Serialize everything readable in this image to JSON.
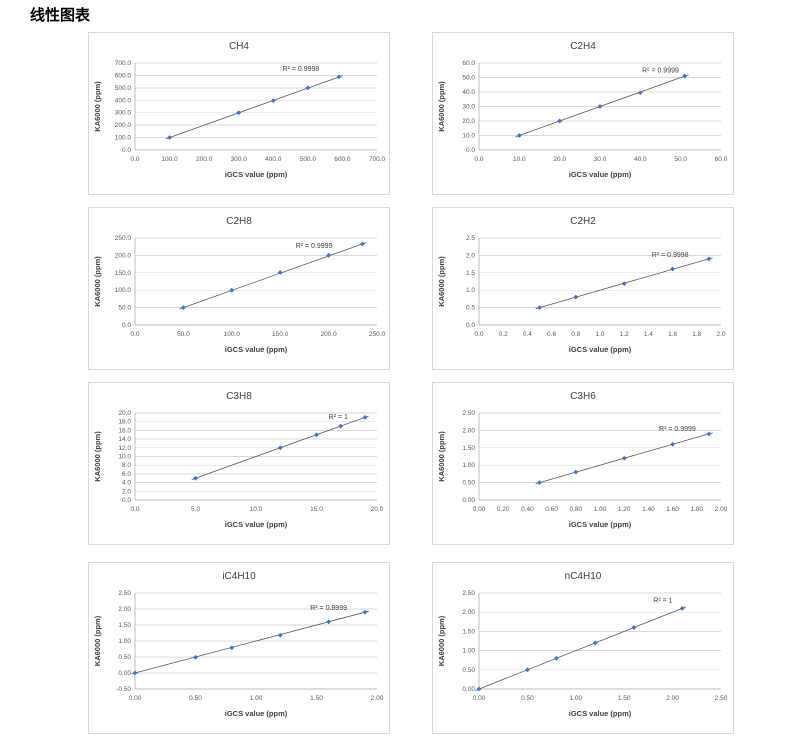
{
  "page": {
    "title": "线性图表"
  },
  "style": {
    "marker_color": "#4472C4",
    "trendline_color": "#595959",
    "grid_color": "#d9d9d9",
    "axis_color": "#bfbfbf",
    "tick_text_color": "#595959",
    "title_text_color": "#404040"
  },
  "chart_data": [
    {
      "type": "scatter",
      "title": "CH4",
      "xlabel": "iGCS value (ppm)",
      "ylabel": "KA6000 (ppm)",
      "xlim": [
        0,
        700
      ],
      "ylim": [
        0,
        700
      ],
      "xticks": [
        "0.0",
        "100.0",
        "200.0",
        "300.0",
        "400.0",
        "500.0",
        "600.0",
        "700.0"
      ],
      "yticks": [
        "0.0",
        "100.0",
        "200.0",
        "300.0",
        "400.0",
        "500.0",
        "600.0",
        "700.0"
      ],
      "x": [
        100,
        300,
        400,
        500,
        590
      ],
      "y": [
        100,
        300,
        397,
        500,
        588
      ],
      "r2": {
        "label": "R² = 0.9998",
        "x": 480,
        "y": 635
      },
      "legend": false,
      "grid": "horizontal-only"
    },
    {
      "type": "scatter",
      "title": "C2H4",
      "xlabel": "iGCS value (ppm)",
      "ylabel": "KA6000 (ppm)",
      "xlim": [
        0,
        60
      ],
      "ylim": [
        0,
        60
      ],
      "xticks": [
        "0.0",
        "10.0",
        "20.0",
        "30.0",
        "40.0",
        "50.0",
        "60.0"
      ],
      "yticks": [
        "0.0",
        "10.0",
        "20.0",
        "30.0",
        "40.0",
        "50.0",
        "60.0"
      ],
      "x": [
        10,
        20,
        30,
        40,
        51
      ],
      "y": [
        10,
        20,
        30,
        39.5,
        51
      ],
      "r2": {
        "label": "R² = 0.9999",
        "x": 45,
        "y": 53.5
      },
      "legend": false,
      "grid": "horizontal-only"
    },
    {
      "type": "scatter",
      "title": "C2H8",
      "xlabel": "iGCS value (ppm)",
      "ylabel": "KA6000 (ppm)",
      "xlim": [
        0,
        250
      ],
      "ylim": [
        0,
        250
      ],
      "xticks": [
        "0.0",
        "50.0",
        "100.0",
        "150.0",
        "200.0",
        "250.0"
      ],
      "yticks": [
        "0.0",
        "50.0",
        "100.0",
        "150.0",
        "200.0",
        "250.0"
      ],
      "x": [
        50,
        100,
        150,
        200,
        235
      ],
      "y": [
        50,
        100,
        151,
        200,
        233
      ],
      "r2": {
        "label": "R² = 0.9999",
        "x": 185,
        "y": 221
      },
      "legend": false,
      "grid": "horizontal-only"
    },
    {
      "type": "scatter",
      "title": "C2H2",
      "xlabel": "iGCS value (ppm)",
      "ylabel": "KA6000 (ppm)",
      "xlim": [
        0,
        2.0
      ],
      "ylim": [
        0,
        2.5
      ],
      "xticks": [
        "0.0",
        "0.2",
        "0.4",
        "0.6",
        "0.8",
        "1.0",
        "1.2",
        "1.4",
        "1.6",
        "1.8",
        "2.0"
      ],
      "yticks": [
        "0.0",
        "0.5",
        "1.0",
        "1.5",
        "2.0",
        "2.5"
      ],
      "x": [
        0.5,
        0.8,
        1.2,
        1.6,
        1.9
      ],
      "y": [
        0.5,
        0.8,
        1.19,
        1.61,
        1.9
      ],
      "r2": {
        "label": "R² = 0.9998",
        "x": 1.58,
        "y": 1.95
      },
      "legend": false,
      "grid": "horizontal-only"
    },
    {
      "type": "scatter",
      "title": "C3H8",
      "xlabel": "iGCS value (ppm)",
      "ylabel": "KA6000 (ppm)",
      "xlim": [
        0,
        20
      ],
      "ylim": [
        0,
        20
      ],
      "xticks": [
        "0.0",
        "5.0",
        "10.0",
        "15.0",
        "20.0"
      ],
      "yticks": [
        "0.0",
        "2.0",
        "4.0",
        "6.0",
        "8.0",
        "10.0",
        "12.0",
        "14.0",
        "16.0",
        "18.0",
        "20.0"
      ],
      "x": [
        5,
        12,
        15,
        17,
        19
      ],
      "y": [
        5,
        12,
        15,
        17,
        19
      ],
      "r2": {
        "label": "R² = 1",
        "x": 16.8,
        "y": 18.6
      },
      "legend": false,
      "grid": "horizontal-only"
    },
    {
      "type": "scatter",
      "title": "C3H6",
      "xlabel": "iGCS value (ppm)",
      "ylabel": "KA6000 (ppm)",
      "xlim": [
        0,
        2.0
      ],
      "ylim": [
        0,
        2.5
      ],
      "xticks": [
        "0.00",
        "0.20",
        "0.40",
        "0.60",
        "0.80",
        "1.00",
        "1.20",
        "1.40",
        "1.60",
        "1.80",
        "2.00"
      ],
      "yticks": [
        "0.00",
        "0.50",
        "1.00",
        "1.50",
        "2.00",
        "2.50"
      ],
      "x": [
        0.5,
        0.8,
        1.2,
        1.6,
        1.9
      ],
      "y": [
        0.5,
        0.8,
        1.2,
        1.6,
        1.9
      ],
      "r2": {
        "label": "R² = 0.9999",
        "x": 1.64,
        "y": 1.98
      },
      "legend": false,
      "grid": "horizontal-only"
    },
    {
      "type": "scatter",
      "title": "iC4H10",
      "xlabel": "iGCS value (ppm)",
      "ylabel": "KA6000 (ppm)",
      "xlim": [
        0,
        2.0
      ],
      "ylim": [
        -0.5,
        2.5
      ],
      "xticks": [
        "0.00",
        "0.50",
        "1.00",
        "1.50",
        "2.00"
      ],
      "yticks": [
        "-0.50",
        "0.00",
        "0.50",
        "1.00",
        "1.50",
        "2.00",
        "2.50"
      ],
      "x": [
        0,
        0.5,
        0.8,
        1.2,
        1.6,
        1.9
      ],
      "y": [
        0,
        0.49,
        0.79,
        1.18,
        1.6,
        1.9
      ],
      "r2": {
        "label": "R² = 0.9999",
        "x": 1.6,
        "y": 1.97
      },
      "legend": false,
      "grid": "horizontal-only"
    },
    {
      "type": "scatter",
      "title": "nC4H10",
      "xlabel": "iGCS value (ppm)",
      "ylabel": "KA6000 (ppm)",
      "xlim": [
        0,
        2.5
      ],
      "ylim": [
        0,
        2.5
      ],
      "xticks": [
        "0.00",
        "0.50",
        "1.00",
        "1.50",
        "2.00",
        "2.50"
      ],
      "yticks": [
        "0.00",
        "0.50",
        "1.00",
        "1.50",
        "2.00",
        "2.50"
      ],
      "x": [
        0,
        0.5,
        0.8,
        1.2,
        1.6,
        2.1
      ],
      "y": [
        0,
        0.5,
        0.8,
        1.2,
        1.6,
        2.1
      ],
      "r2": {
        "label": "R² = 1",
        "x": 1.9,
        "y": 2.25
      },
      "legend": false,
      "grid": "horizontal-only"
    }
  ]
}
